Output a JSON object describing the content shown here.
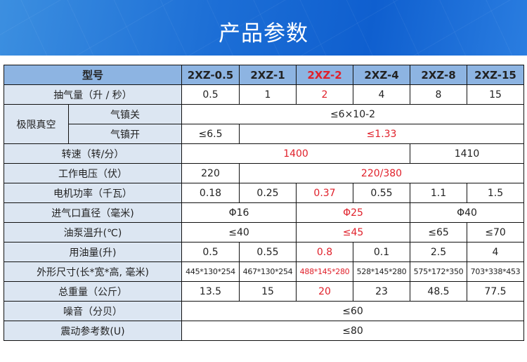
{
  "banner": {
    "title": "产品参数"
  },
  "colors": {
    "header_bg": "#8db4e2",
    "label_bg": "#dce6f2",
    "highlight": "#e0202a",
    "banner": "#1d6fd6"
  },
  "table": {
    "rows": [
      {
        "type": "head",
        "cells": [
          {
            "text": "型号",
            "span": 2,
            "label": true
          },
          {
            "text": "2XZ-0.5"
          },
          {
            "text": "2XZ-1"
          },
          {
            "text": "2XZ-2",
            "red": true
          },
          {
            "text": "2XZ-4"
          },
          {
            "text": "2XZ-8"
          },
          {
            "text": "2XZ-15"
          }
        ]
      },
      {
        "cells": [
          {
            "text": "抽气量（升 / 秒）",
            "span": 2,
            "label": true
          },
          {
            "text": "0.5"
          },
          {
            "text": "1"
          },
          {
            "text": "2",
            "red": true
          },
          {
            "text": "4"
          },
          {
            "text": "8"
          },
          {
            "text": "15"
          }
        ]
      },
      {
        "cells": [
          {
            "text": "极限真空",
            "rowspan": 2,
            "label": true
          },
          {
            "text": "气镇关",
            "label": true
          },
          {
            "text": "≤6×10-2",
            "span": 6
          }
        ]
      },
      {
        "cells": [
          {
            "text": "气镇开",
            "label": true
          },
          {
            "text": "≤6.5"
          },
          {
            "text": "≤1.33",
            "span": 5,
            "red": true
          }
        ]
      },
      {
        "cells": [
          {
            "text": "转速（转/分）",
            "span": 2,
            "label": true
          },
          {
            "text": "1400",
            "span": 4,
            "red": true
          },
          {
            "text": "1410",
            "span": 2
          }
        ]
      },
      {
        "cells": [
          {
            "text": "工作电压（伏）",
            "span": 2,
            "label": true
          },
          {
            "text": "220"
          },
          {
            "text": "220/380",
            "span": 5,
            "red": true
          }
        ]
      },
      {
        "cells": [
          {
            "text": "电机功率（千瓦）",
            "span": 2,
            "label": true
          },
          {
            "text": "0.18"
          },
          {
            "text": "0.25"
          },
          {
            "text": "0.37",
            "red": true
          },
          {
            "text": "0.55"
          },
          {
            "text": "1.1"
          },
          {
            "text": "1.5"
          }
        ]
      },
      {
        "cells": [
          {
            "text": "进气口直径（毫米)",
            "span": 2,
            "label": true
          },
          {
            "text": "Φ16",
            "span": 2
          },
          {
            "text": "Φ25",
            "span": 2,
            "red": true
          },
          {
            "text": "Φ40",
            "span": 2
          }
        ]
      },
      {
        "cells": [
          {
            "text": "油泵温升(℃)",
            "span": 2,
            "label": true
          },
          {
            "text": "≤40",
            "span": 2
          },
          {
            "text": "≤45",
            "span": 2,
            "red": true
          },
          {
            "text": "≤65"
          },
          {
            "text": "≤70"
          }
        ]
      },
      {
        "cells": [
          {
            "text": "用油量(升)",
            "span": 2,
            "label": true
          },
          {
            "text": "0.5"
          },
          {
            "text": "0.55"
          },
          {
            "text": "0.8",
            "red": true
          },
          {
            "text": "0.1"
          },
          {
            "text": "2.5"
          },
          {
            "text": "4"
          }
        ]
      },
      {
        "cells": [
          {
            "text": "外形尺寸(长*宽*高, 毫米)",
            "span": 2,
            "label": true
          },
          {
            "text": "445*130*254",
            "small": true
          },
          {
            "text": "467*130*254",
            "small": true
          },
          {
            "text": "488*145*280",
            "small": true,
            "red": true
          },
          {
            "text": "528*145*280",
            "small": true
          },
          {
            "text": "575*172*350",
            "small": true
          },
          {
            "text": "703*338*453",
            "small": true
          }
        ]
      },
      {
        "cells": [
          {
            "text": "总重量（公斤）",
            "span": 2,
            "label": true
          },
          {
            "text": "13.5"
          },
          {
            "text": "15"
          },
          {
            "text": "20",
            "red": true
          },
          {
            "text": "23"
          },
          {
            "text": "48.5"
          },
          {
            "text": "77.5"
          }
        ]
      },
      {
        "cells": [
          {
            "text": "噪音（分贝）",
            "span": 2,
            "label": true
          },
          {
            "text": "≤60",
            "span": 6
          }
        ]
      },
      {
        "cells": [
          {
            "text": "震动参考数(U)",
            "span": 2,
            "label": true
          },
          {
            "text": "≤80",
            "span": 6
          }
        ]
      }
    ]
  }
}
